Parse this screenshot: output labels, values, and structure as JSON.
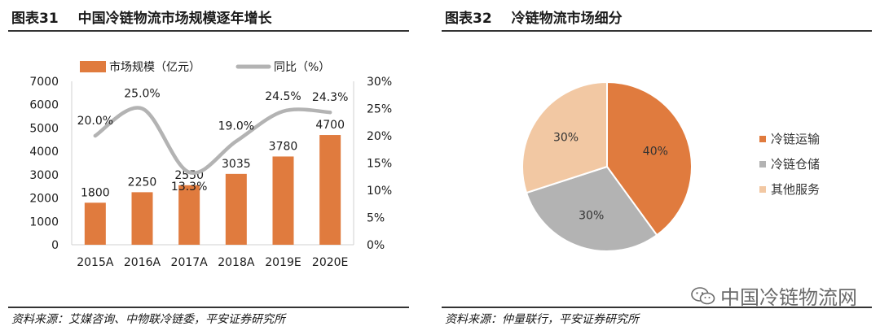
{
  "figures": [
    {
      "id": "Figure 31",
      "number_label": "图表31",
      "title": "中国冷链物流市场规模逐年增长",
      "source": "资料来源：艾媒咨询、中物联冷链委，平安证券研究所"
    },
    {
      "id": "Figure 32",
      "number_label": "图表32",
      "title": "冷链物流市场细分",
      "source": "资料来源：仲量联行，平安证券研究所"
    }
  ],
  "watermark": {
    "text": "中国冷链物流网",
    "icon": "wechat-icon"
  },
  "colors": {
    "bar": "#E07B3E",
    "line": "#B3B3B3",
    "pie": [
      "#E07B3E",
      "#B3B3B3",
      "#F2C8A3"
    ]
  },
  "chart_data": [
    {
      "type": "bar",
      "categories": [
        "2015A",
        "2016A",
        "2017A",
        "2018A",
        "2019E",
        "2020E"
      ],
      "series": [
        {
          "name": "市场规模（亿元）",
          "type": "bar",
          "axis": "left",
          "values": [
            1800,
            2250,
            2550,
            3035,
            3780,
            4700
          ],
          "labels": [
            "1800",
            "2250",
            "2550",
            "3035",
            "3780",
            "4700"
          ]
        },
        {
          "name": "同比（%）",
          "type": "line",
          "axis": "right",
          "values": [
            20.0,
            25.0,
            13.3,
            19.0,
            24.5,
            24.3
          ],
          "labels": [
            "20.0%",
            "25.0%",
            "13.3%",
            "19.0%",
            "24.5%",
            "24.3%"
          ]
        }
      ],
      "ylim": [
        0,
        7000
      ],
      "yticks": [
        "0",
        "1000",
        "2000",
        "3000",
        "4000",
        "5000",
        "6000",
        "7000"
      ],
      "y2lim": [
        0,
        30
      ],
      "y2ticks": [
        "0%",
        "5%",
        "10%",
        "15%",
        "20%",
        "25%",
        "30%"
      ],
      "legend_position": "top",
      "grid": false
    },
    {
      "type": "pie",
      "categories": [
        "冷链运输",
        "冷链仓储",
        "其他服务"
      ],
      "values": [
        40,
        30,
        30
      ],
      "labels": [
        "40%",
        "30%",
        "30%"
      ],
      "legend_position": "right"
    }
  ]
}
